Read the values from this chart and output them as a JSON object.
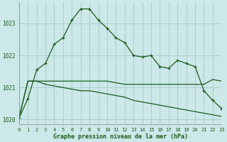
{
  "title": "Graphe pression niveau de la mer (hPa)",
  "bg_color": "#cce8e8",
  "grid_color": "#aacece",
  "line_color": "#1a5c1a",
  "xlim": [
    0,
    23
  ],
  "ylim": [
    1019.85,
    1023.65
  ],
  "yticks": [
    1020,
    1021,
    1022,
    1023
  ],
  "xticks": [
    0,
    1,
    2,
    3,
    4,
    5,
    6,
    7,
    8,
    9,
    10,
    11,
    12,
    13,
    14,
    15,
    16,
    17,
    18,
    19,
    20,
    21,
    22,
    23
  ],
  "series1": [
    1020.05,
    1020.65,
    1021.55,
    1021.75,
    1022.35,
    1022.55,
    1023.1,
    1023.45,
    1023.45,
    1023.1,
    1022.85,
    1022.55,
    1022.4,
    1022.0,
    1021.95,
    1022.0,
    1021.65,
    1021.6,
    1021.85,
    1021.75,
    1021.65,
    1020.9,
    1020.6,
    1020.35
  ],
  "series2": [
    1020.05,
    1021.2,
    1021.2,
    1021.2,
    1021.2,
    1021.2,
    1021.2,
    1021.2,
    1021.2,
    1021.2,
    1021.2,
    1021.15,
    1021.1,
    1021.1,
    1021.1,
    1021.1,
    1021.1,
    1021.1,
    1021.1,
    1021.1,
    1021.1,
    1021.1,
    1021.25,
    1021.2
  ],
  "series3": [
    1020.05,
    1021.2,
    1021.2,
    1021.1,
    1021.05,
    1021.0,
    1020.95,
    1020.9,
    1020.9,
    1020.85,
    1020.8,
    1020.75,
    1020.7,
    1020.6,
    1020.55,
    1020.5,
    1020.45,
    1020.4,
    1020.35,
    1020.3,
    1020.25,
    1020.2,
    1020.15,
    1020.1
  ]
}
